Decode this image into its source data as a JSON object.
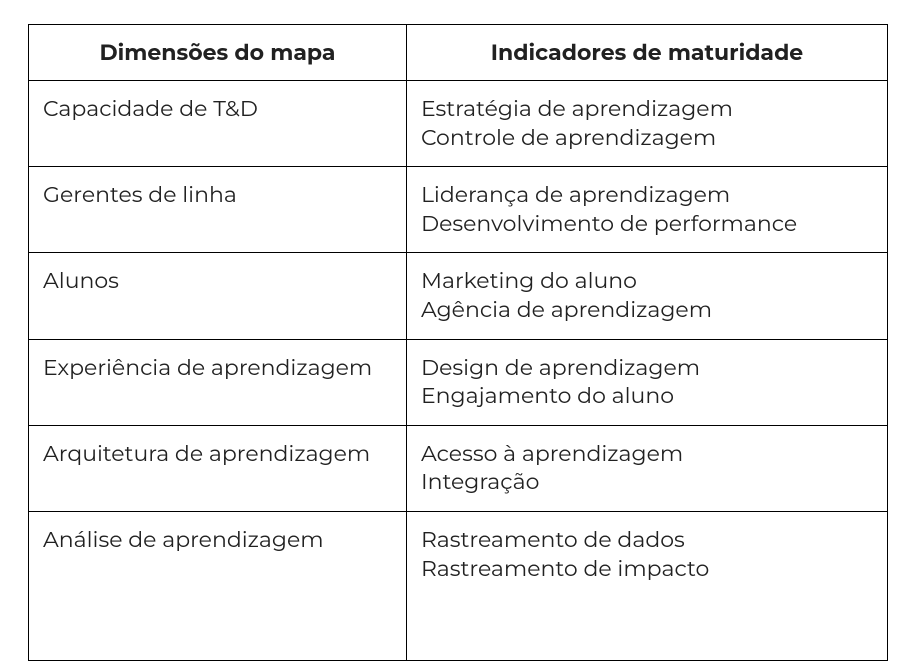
{
  "table": {
    "type": "table",
    "border_color": "#000000",
    "background_color": "#ffffff",
    "text_color": "#212121",
    "font_family": "Montserrat, Segoe UI, Helvetica Neue, Arial, sans-serif",
    "header_fontsize": 22,
    "header_fontweight": 700,
    "cell_fontsize": 22,
    "cell_fontweight": 400,
    "columns": [
      {
        "key": "dimensao",
        "label": "Dimensões do mapa",
        "align": "center_header_left_body",
        "width_pct": 44
      },
      {
        "key": "indicadores",
        "label": "Indicadores de maturidade",
        "align": "center_header_left_body",
        "width_pct": 56
      }
    ],
    "rows": [
      {
        "dimensao": "Capacidade de T&D",
        "indicadores": [
          "Estratégia de aprendizagem",
          "Controle de aprendizagem"
        ]
      },
      {
        "dimensao": "Gerentes de linha",
        "indicadores": [
          "Liderança de aprendizagem",
          "Desenvolvimento de performance"
        ]
      },
      {
        "dimensao": "Alunos",
        "indicadores": [
          "Marketing do aluno",
          "Agência de aprendizagem"
        ]
      },
      {
        "dimensao": "Experiência de aprendizagem",
        "indicadores": [
          "Design de aprendizagem",
          "Engajamento do aluno"
        ]
      },
      {
        "dimensao": "Arquitetura de aprendizagem",
        "indicadores": [
          "Acesso à aprendizagem",
          "Integração"
        ]
      },
      {
        "dimensao": "Análise de aprendizagem",
        "indicadores": [
          "Rastreamento de dados",
          "Rastreamento de impacto"
        ],
        "extra_height": true
      }
    ]
  }
}
